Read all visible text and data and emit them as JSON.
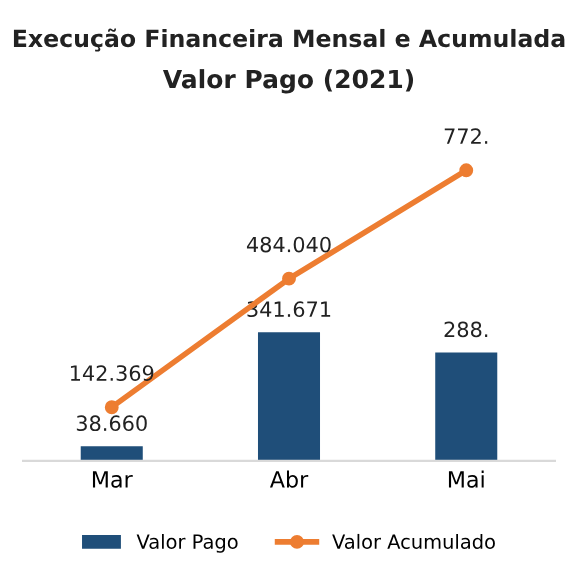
{
  "chart_data": {
    "type": "bar",
    "title": "Execução Financeira Mensal e Acumulada",
    "subtitle": "Valor Pago (2021)",
    "categories": [
      "Mar",
      "Abr",
      "Mai"
    ],
    "series": [
      {
        "name": "Valor Pago",
        "color": "#1f4e79",
        "values": [
          38.66,
          341.671,
          288
        ],
        "value_labels": [
          "38.660",
          "341.671",
          "288."
        ]
      },
      {
        "name": "Valor Acumulado",
        "type": "line",
        "color": "#ed7d31",
        "values": [
          142.369,
          484.04,
          772
        ],
        "value_labels": [
          "142.369",
          "484.040",
          "772."
        ],
        "marker": "circle"
      }
    ],
    "legend": "bottom",
    "grid": false
  }
}
